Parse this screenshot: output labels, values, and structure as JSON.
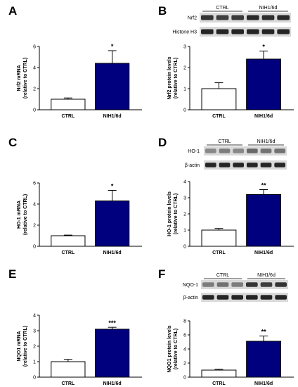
{
  "panels": [
    {
      "letter": "A"
    },
    {
      "letter": "B"
    },
    {
      "letter": "C"
    },
    {
      "letter": "D"
    },
    {
      "letter": "E"
    },
    {
      "letter": "F"
    }
  ],
  "colors": {
    "ctrl": "#ffffff",
    "treated": "#00007f",
    "bar_stroke": "#000000"
  },
  "blots": [
    {
      "group_labels": [
        "CTRL",
        "NIH1/6d"
      ],
      "rows": [
        "Nrf2",
        "Histone H3"
      ]
    },
    {
      "group_labels": [
        "CTRL",
        "NIH1/6d"
      ],
      "rows": [
        "HO-1",
        "β-actin"
      ]
    },
    {
      "group_labels": [
        "CTRL",
        "NIH1/6d"
      ],
      "rows": [
        "NQO-1",
        "β-actin"
      ]
    }
  ],
  "chart_data": [
    {
      "type": "bar",
      "categories": [
        "CTRL",
        "NIH1/6d"
      ],
      "values": [
        1.0,
        4.4
      ],
      "errors": [
        0.12,
        1.2
      ],
      "ylabel": [
        "Nrf2 mRNA",
        "(relative to CTRL)"
      ],
      "ylim": [
        0,
        6
      ],
      "yticks": [
        0,
        2,
        4,
        6
      ],
      "significance": "*"
    },
    {
      "type": "bar",
      "categories": [
        "CTRL",
        "NIH1/6d"
      ],
      "values": [
        1.0,
        2.4
      ],
      "errors": [
        0.28,
        0.38
      ],
      "ylabel": [
        "Nrf2 protein levels",
        "(relative to CTRL)"
      ],
      "ylim": [
        0,
        3
      ],
      "yticks": [
        0,
        1,
        2,
        3
      ],
      "significance": "*"
    },
    {
      "type": "bar",
      "categories": [
        "CTRL",
        "NIH1/6d"
      ],
      "values": [
        1.0,
        4.3
      ],
      "errors": [
        0.06,
        1.0
      ],
      "ylabel": [
        "HO-1 mRNA",
        "(relative to CTRL)"
      ],
      "ylim": [
        0,
        6
      ],
      "yticks": [
        0,
        2,
        4,
        6
      ],
      "significance": "*"
    },
    {
      "type": "bar",
      "categories": [
        "CTRL",
        "NIH1/6d"
      ],
      "values": [
        1.0,
        3.2
      ],
      "errors": [
        0.1,
        0.3
      ],
      "ylabel": [
        "HO-1 protein levels",
        "(relative to CTRL)"
      ],
      "ylim": [
        0,
        4
      ],
      "yticks": [
        0,
        1,
        2,
        3,
        4
      ],
      "significance": "**"
    },
    {
      "type": "bar",
      "categories": [
        "CTRL",
        "NIH1/6d"
      ],
      "values": [
        1.0,
        3.1
      ],
      "errors": [
        0.15,
        0.12
      ],
      "ylabel": [
        "NQO1 mRNA",
        "(relative to CTRL)"
      ],
      "ylim": [
        0,
        4
      ],
      "yticks": [
        0,
        1,
        2,
        3,
        4
      ],
      "significance": "***"
    },
    {
      "type": "bar",
      "categories": [
        "CTRL",
        "NIH1/6d"
      ],
      "values": [
        1.0,
        5.1
      ],
      "errors": [
        0.12,
        0.75
      ],
      "ylabel": [
        "NQO1 protein levels",
        "(relative to CTRL)"
      ],
      "ylim": [
        0,
        8
      ],
      "yticks": [
        0,
        2,
        4,
        6,
        8
      ],
      "significance": "**"
    }
  ]
}
